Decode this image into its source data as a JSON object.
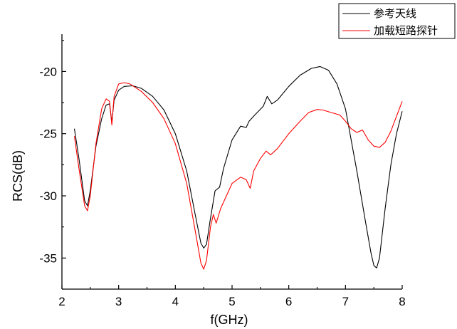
{
  "chart_data": {
    "type": "line",
    "title": "",
    "xlabel": "f(GHz)",
    "ylabel": "RCS(dB)",
    "xlim": [
      2,
      8
    ],
    "ylim": [
      -37.5,
      -17
    ],
    "xticks": [
      2,
      3,
      4,
      5,
      6,
      7,
      8
    ],
    "yticks": [
      -35,
      -30,
      -25,
      -20
    ],
    "grid": false,
    "legend_position": "top-right",
    "series": [
      {
        "name": "参考天线",
        "color": "#000000",
        "points": [
          [
            2.22,
            -24.6
          ],
          [
            2.3,
            -27.0
          ],
          [
            2.4,
            -30.4
          ],
          [
            2.45,
            -30.8
          ],
          [
            2.5,
            -29.6
          ],
          [
            2.6,
            -26.0
          ],
          [
            2.7,
            -23.8
          ],
          [
            2.78,
            -22.7
          ],
          [
            2.84,
            -22.6
          ],
          [
            2.88,
            -24.1
          ],
          [
            2.92,
            -22.3
          ],
          [
            3.0,
            -21.5
          ],
          [
            3.1,
            -21.2
          ],
          [
            3.25,
            -21.15
          ],
          [
            3.4,
            -21.35
          ],
          [
            3.6,
            -22.0
          ],
          [
            3.8,
            -23.1
          ],
          [
            4.0,
            -25.0
          ],
          [
            4.2,
            -28.0
          ],
          [
            4.35,
            -31.5
          ],
          [
            4.45,
            -33.8
          ],
          [
            4.5,
            -34.2
          ],
          [
            4.55,
            -33.9
          ],
          [
            4.62,
            -31.8
          ],
          [
            4.7,
            -29.6
          ],
          [
            4.78,
            -29.3
          ],
          [
            4.85,
            -27.8
          ],
          [
            5.0,
            -25.5
          ],
          [
            5.15,
            -24.4
          ],
          [
            5.25,
            -24.5
          ],
          [
            5.3,
            -24.0
          ],
          [
            5.4,
            -23.5
          ],
          [
            5.55,
            -22.8
          ],
          [
            5.62,
            -22.0
          ],
          [
            5.7,
            -22.6
          ],
          [
            5.8,
            -22.3
          ],
          [
            6.0,
            -21.2
          ],
          [
            6.2,
            -20.3
          ],
          [
            6.4,
            -19.75
          ],
          [
            6.55,
            -19.6
          ],
          [
            6.7,
            -19.9
          ],
          [
            6.85,
            -21.0
          ],
          [
            7.0,
            -23.0
          ],
          [
            7.1,
            -25.5
          ],
          [
            7.2,
            -28.0
          ],
          [
            7.35,
            -32.0
          ],
          [
            7.45,
            -34.6
          ],
          [
            7.5,
            -35.6
          ],
          [
            7.55,
            -35.8
          ],
          [
            7.6,
            -35.0
          ],
          [
            7.7,
            -31.0
          ],
          [
            7.8,
            -27.5
          ],
          [
            7.9,
            -25.0
          ],
          [
            8.0,
            -23.2
          ]
        ]
      },
      {
        "name": "加载短路探针",
        "color": "#ff0000",
        "points": [
          [
            2.22,
            -25.2
          ],
          [
            2.3,
            -27.8
          ],
          [
            2.4,
            -30.8
          ],
          [
            2.45,
            -31.2
          ],
          [
            2.5,
            -30.0
          ],
          [
            2.6,
            -25.8
          ],
          [
            2.7,
            -23.0
          ],
          [
            2.78,
            -22.2
          ],
          [
            2.84,
            -22.4
          ],
          [
            2.88,
            -24.3
          ],
          [
            2.92,
            -22.0
          ],
          [
            3.0,
            -21.0
          ],
          [
            3.1,
            -20.9
          ],
          [
            3.2,
            -21.0
          ],
          [
            3.4,
            -21.6
          ],
          [
            3.6,
            -22.5
          ],
          [
            3.8,
            -23.8
          ],
          [
            4.0,
            -25.8
          ],
          [
            4.2,
            -29.0
          ],
          [
            4.35,
            -32.8
          ],
          [
            4.45,
            -35.4
          ],
          [
            4.5,
            -35.9
          ],
          [
            4.55,
            -35.2
          ],
          [
            4.62,
            -32.5
          ],
          [
            4.67,
            -31.5
          ],
          [
            4.72,
            -32.2
          ],
          [
            4.8,
            -31.0
          ],
          [
            5.0,
            -29.0
          ],
          [
            5.15,
            -28.5
          ],
          [
            5.25,
            -28.7
          ],
          [
            5.32,
            -29.4
          ],
          [
            5.38,
            -28.0
          ],
          [
            5.5,
            -27.0
          ],
          [
            5.6,
            -26.4
          ],
          [
            5.68,
            -26.7
          ],
          [
            5.8,
            -26.2
          ],
          [
            6.0,
            -25.0
          ],
          [
            6.2,
            -24.0
          ],
          [
            6.35,
            -23.3
          ],
          [
            6.5,
            -23.05
          ],
          [
            6.6,
            -23.1
          ],
          [
            6.75,
            -23.3
          ],
          [
            6.9,
            -23.5
          ],
          [
            7.0,
            -24.0
          ],
          [
            7.1,
            -24.6
          ],
          [
            7.2,
            -24.9
          ],
          [
            7.3,
            -24.7
          ],
          [
            7.4,
            -25.5
          ],
          [
            7.5,
            -26.0
          ],
          [
            7.6,
            -26.1
          ],
          [
            7.7,
            -25.7
          ],
          [
            7.8,
            -24.8
          ],
          [
            7.9,
            -23.6
          ],
          [
            8.0,
            -22.4
          ]
        ]
      }
    ]
  }
}
